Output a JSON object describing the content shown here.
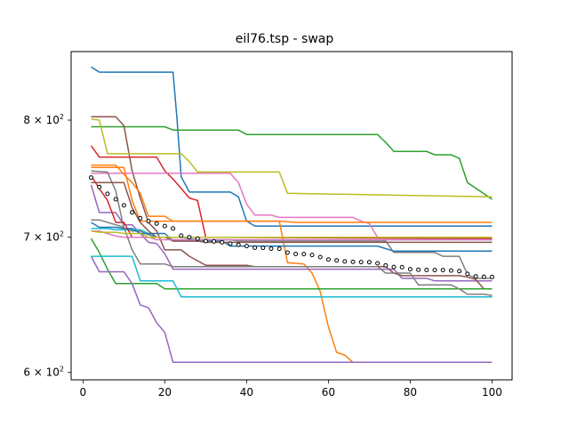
{
  "chart_data": {
    "type": "line",
    "title": "eil76.tsp - swap",
    "xlabel": "",
    "ylabel": "",
    "y_scale": "log",
    "xlim": [
      -2.9,
      104.9
    ],
    "ylim": [
      595,
      865
    ],
    "grid": false,
    "legend": "none",
    "x_ticks": [
      0,
      20,
      40,
      60,
      80,
      100
    ],
    "x_tick_labels": [
      "0",
      "20",
      "40",
      "60",
      "80",
      "100"
    ],
    "y_ticks": [
      600,
      700,
      800
    ],
    "y_tick_labels": [
      {
        "base": "6",
        "sup": "2"
      },
      {
        "base": "7",
        "sup": "2"
      },
      {
        "base": "8",
        "sup": "2"
      }
    ],
    "series": [
      {
        "color": "#1f77b4",
        "points": [
          [
            2,
            850
          ],
          [
            4,
            845
          ],
          [
            22,
            845
          ],
          [
            23,
            800
          ],
          [
            24,
            750
          ],
          [
            26,
            737
          ],
          [
            36,
            737
          ],
          [
            38,
            733
          ],
          [
            40,
            713
          ],
          [
            42,
            709
          ],
          [
            100,
            709
          ]
        ]
      },
      {
        "color": "#ff7f0e",
        "points": [
          [
            2,
            758
          ],
          [
            10,
            758
          ],
          [
            12,
            730
          ],
          [
            14,
            713
          ],
          [
            48,
            713
          ],
          [
            50,
            680
          ],
          [
            54,
            679
          ],
          [
            56,
            672
          ],
          [
            58,
            658
          ],
          [
            60,
            632
          ],
          [
            62,
            614
          ],
          [
            64,
            612
          ],
          [
            66,
            607
          ],
          [
            100,
            607
          ]
        ]
      },
      {
        "color": "#2ca02c",
        "points": [
          [
            2,
            794
          ],
          [
            20,
            794
          ],
          [
            22,
            791
          ],
          [
            38,
            791
          ],
          [
            40,
            787
          ],
          [
            72,
            787
          ],
          [
            74,
            780
          ],
          [
            76,
            772
          ],
          [
            84,
            772
          ],
          [
            86,
            769
          ],
          [
            90,
            769
          ],
          [
            92,
            766
          ],
          [
            94,
            745
          ],
          [
            100,
            731
          ]
        ]
      },
      {
        "color": "#d62728",
        "points": [
          [
            2,
            777
          ],
          [
            4,
            767
          ],
          [
            18,
            767
          ],
          [
            20,
            755
          ],
          [
            22,
            748
          ],
          [
            24,
            740
          ],
          [
            26,
            732
          ],
          [
            28,
            730
          ],
          [
            30,
            700
          ],
          [
            100,
            699
          ]
        ]
      },
      {
        "color": "#9467bd",
        "points": [
          [
            2,
            743
          ],
          [
            4,
            720
          ],
          [
            8,
            720
          ],
          [
            10,
            710
          ],
          [
            12,
            710
          ],
          [
            14,
            703
          ],
          [
            16,
            696
          ],
          [
            18,
            695
          ],
          [
            20,
            687
          ],
          [
            22,
            675
          ],
          [
            76,
            675
          ],
          [
            78,
            668
          ],
          [
            84,
            668
          ],
          [
            86,
            666
          ],
          [
            100,
            666
          ]
        ]
      },
      {
        "color": "#8c564b",
        "points": [
          [
            2,
            803
          ],
          [
            8,
            803
          ],
          [
            10,
            795
          ],
          [
            12,
            755
          ],
          [
            14,
            732
          ],
          [
            16,
            712
          ],
          [
            18,
            705
          ],
          [
            20,
            690
          ],
          [
            24,
            690
          ],
          [
            26,
            685
          ],
          [
            30,
            678
          ],
          [
            40,
            678
          ],
          [
            42,
            677
          ],
          [
            74,
            677
          ],
          [
            76,
            672
          ],
          [
            78,
            670
          ],
          [
            92,
            670
          ],
          [
            94,
            669
          ],
          [
            96,
            667
          ],
          [
            98,
            660
          ],
          [
            100,
            660
          ]
        ]
      },
      {
        "color": "#e377c2",
        "points": [
          [
            2,
            753
          ],
          [
            36,
            753
          ],
          [
            38,
            745
          ],
          [
            40,
            727
          ],
          [
            42,
            718
          ],
          [
            46,
            718
          ],
          [
            48,
            716
          ],
          [
            66,
            716
          ],
          [
            68,
            713
          ],
          [
            70,
            711
          ],
          [
            72,
            700
          ],
          [
            100,
            700
          ]
        ]
      },
      {
        "color": "#7f7f7f",
        "points": [
          [
            2,
            755
          ],
          [
            6,
            754
          ],
          [
            8,
            738
          ],
          [
            10,
            707
          ],
          [
            12,
            705
          ],
          [
            14,
            705
          ],
          [
            16,
            702
          ],
          [
            18,
            700
          ],
          [
            20,
            700
          ],
          [
            22,
            698
          ],
          [
            36,
            698
          ],
          [
            38,
            697
          ],
          [
            74,
            697
          ],
          [
            76,
            688
          ],
          [
            86,
            688
          ],
          [
            88,
            685
          ],
          [
            92,
            685
          ],
          [
            94,
            671
          ],
          [
            96,
            668
          ],
          [
            100,
            668
          ]
        ]
      },
      {
        "color": "#bcbd22",
        "points": [
          [
            2,
            801
          ],
          [
            4,
            800
          ],
          [
            6,
            770
          ],
          [
            24,
            770
          ],
          [
            26,
            763
          ],
          [
            28,
            754
          ],
          [
            48,
            754
          ],
          [
            50,
            736
          ],
          [
            100,
            733
          ]
        ]
      },
      {
        "color": "#17becf",
        "points": [
          [
            2,
            707
          ],
          [
            4,
            707
          ],
          [
            6,
            707
          ],
          [
            8,
            706
          ],
          [
            14,
            706
          ],
          [
            16,
            703
          ],
          [
            18,
            700
          ],
          [
            24,
            700
          ],
          [
            26,
            699
          ],
          [
            28,
            698
          ],
          [
            100,
            698
          ]
        ]
      },
      {
        "color": "#1f77b4",
        "points": [
          [
            2,
            712
          ],
          [
            4,
            708
          ],
          [
            8,
            708
          ],
          [
            10,
            707
          ],
          [
            12,
            707
          ],
          [
            14,
            703
          ],
          [
            20,
            703
          ],
          [
            22,
            697
          ],
          [
            34,
            697
          ],
          [
            36,
            693
          ],
          [
            72,
            693
          ],
          [
            74,
            691
          ],
          [
            76,
            689
          ],
          [
            100,
            689
          ]
        ]
      },
      {
        "color": "#ff7f0e",
        "points": [
          [
            2,
            760
          ],
          [
            8,
            760
          ],
          [
            10,
            752
          ],
          [
            12,
            745
          ],
          [
            14,
            736
          ],
          [
            16,
            717
          ],
          [
            20,
            717
          ],
          [
            22,
            713
          ],
          [
            48,
            713
          ],
          [
            52,
            712
          ],
          [
            100,
            712
          ]
        ]
      },
      {
        "color": "#2ca02c",
        "points": [
          [
            2,
            699
          ],
          [
            4,
            688
          ],
          [
            6,
            675
          ],
          [
            8,
            664
          ],
          [
            18,
            664
          ],
          [
            20,
            660
          ],
          [
            100,
            660
          ]
        ]
      },
      {
        "color": "#d62728",
        "points": [
          [
            2,
            751
          ],
          [
            4,
            740
          ],
          [
            6,
            730
          ],
          [
            8,
            712
          ],
          [
            10,
            712
          ],
          [
            12,
            700
          ],
          [
            100,
            700
          ]
        ]
      },
      {
        "color": "#9467bd",
        "points": [
          [
            2,
            685
          ],
          [
            4,
            673
          ],
          [
            10,
            673
          ],
          [
            12,
            664
          ],
          [
            14,
            648
          ],
          [
            16,
            646
          ],
          [
            18,
            635
          ],
          [
            20,
            628
          ],
          [
            22,
            607
          ],
          [
            100,
            607
          ]
        ]
      },
      {
        "color": "#8c564b",
        "points": [
          [
            2,
            745
          ],
          [
            10,
            745
          ],
          [
            12,
            724
          ],
          [
            14,
            712
          ],
          [
            16,
            705
          ],
          [
            18,
            700
          ],
          [
            20,
            700
          ],
          [
            22,
            697
          ],
          [
            28,
            697
          ],
          [
            30,
            696
          ],
          [
            100,
            696
          ]
        ]
      },
      {
        "color": "#e377c2",
        "points": [
          [
            2,
            705
          ],
          [
            4,
            705
          ],
          [
            6,
            703
          ],
          [
            8,
            701
          ],
          [
            10,
            700
          ],
          [
            16,
            700
          ],
          [
            18,
            698
          ],
          [
            100,
            698
          ]
        ]
      },
      {
        "color": "#7f7f7f",
        "points": [
          [
            2,
            714
          ],
          [
            4,
            714
          ],
          [
            8,
            710
          ],
          [
            10,
            708
          ],
          [
            12,
            690
          ],
          [
            14,
            679
          ],
          [
            18,
            679
          ],
          [
            20,
            679
          ],
          [
            22,
            677
          ],
          [
            72,
            677
          ],
          [
            74,
            672
          ],
          [
            80,
            672
          ],
          [
            82,
            663
          ],
          [
            90,
            663
          ],
          [
            92,
            660
          ],
          [
            94,
            656
          ],
          [
            98,
            656
          ],
          [
            100,
            655
          ]
        ]
      },
      {
        "color": "#bcbd22",
        "points": [
          [
            2,
            705
          ],
          [
            4,
            704
          ],
          [
            8,
            704
          ],
          [
            10,
            703
          ],
          [
            14,
            703
          ],
          [
            16,
            700
          ],
          [
            100,
            700
          ]
        ]
      },
      {
        "color": "#17becf",
        "points": [
          [
            2,
            685
          ],
          [
            12,
            685
          ],
          [
            14,
            666
          ],
          [
            22,
            666
          ],
          [
            24,
            654
          ],
          [
            100,
            654
          ]
        ]
      }
    ],
    "mean_points": [
      [
        2,
        749.3
      ],
      [
        4,
        741.3
      ],
      [
        6,
        735.5
      ],
      [
        8,
        731.0
      ],
      [
        10,
        725.9
      ],
      [
        12,
        720.2
      ],
      [
        14,
        715.4
      ],
      [
        16,
        713.0
      ],
      [
        18,
        711.0
      ],
      [
        20,
        709.0
      ],
      [
        22,
        707.0
      ],
      [
        24,
        701.3
      ],
      [
        26,
        700.0
      ],
      [
        28,
        698.9
      ],
      [
        30,
        697.0
      ],
      [
        32,
        696.7
      ],
      [
        34,
        696.0
      ],
      [
        36,
        694.9
      ],
      [
        38,
        694.1
      ],
      [
        40,
        693.0
      ],
      [
        42,
        691.7
      ],
      [
        44,
        691.6
      ],
      [
        46,
        691.0
      ],
      [
        48,
        690.9
      ],
      [
        50,
        687.9
      ],
      [
        52,
        686.8
      ],
      [
        54,
        686.7
      ],
      [
        56,
        686.0
      ],
      [
        58,
        684.4
      ],
      [
        60,
        682.5
      ],
      [
        62,
        681.8
      ],
      [
        64,
        681.0
      ],
      [
        66,
        680.6
      ],
      [
        68,
        680.5
      ],
      [
        70,
        680.4
      ],
      [
        72,
        679.5
      ],
      [
        74,
        677.9
      ],
      [
        76,
        676.7
      ],
      [
        78,
        676.5
      ],
      [
        80,
        675.0
      ],
      [
        82,
        674.6
      ],
      [
        84,
        674.4
      ],
      [
        86,
        674.3
      ],
      [
        88,
        674.3
      ],
      [
        90,
        674.0
      ],
      [
        92,
        673.5
      ],
      [
        94,
        671.4
      ],
      [
        96,
        669.5
      ],
      [
        98,
        669.2
      ],
      [
        100,
        669.0
      ]
    ]
  }
}
